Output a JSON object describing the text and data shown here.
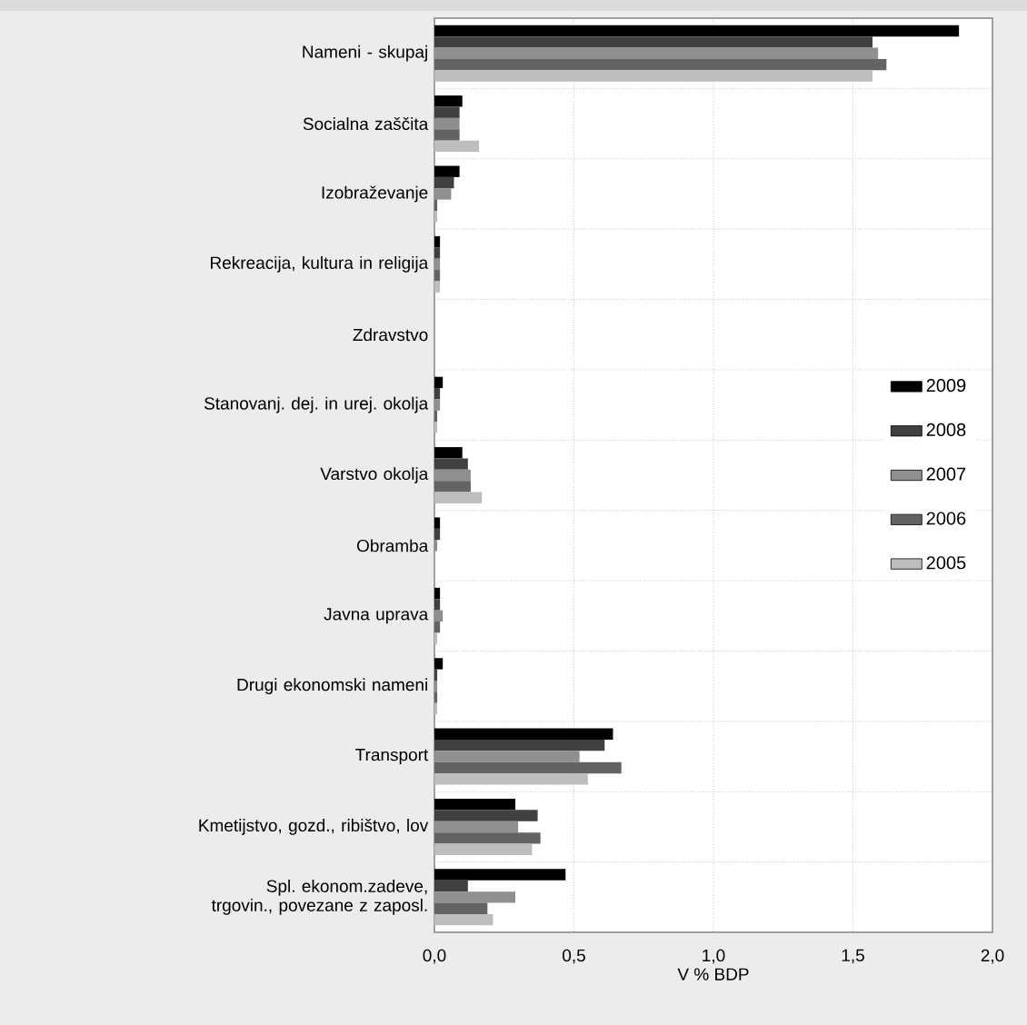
{
  "chart_data": {
    "type": "bar",
    "orientation": "horizontal",
    "xlabel": "V % BDP",
    "categories": [
      "Nameni - skupaj",
      "Socialna zaščita",
      "Izobraževanje",
      "Rekreacija, kultura in religija",
      "Zdravstvo",
      "Stanovanj. dej. in urej. okolja",
      "Varstvo okolja",
      "Obramba",
      "Javna uprava",
      "Drugi ekonomski nameni",
      "Transport",
      "Kmetijstvo, gozd., ribištvo, lov",
      "Spl. ekonom.zadeve, trgovin., povezane z zaposl."
    ],
    "series": [
      {
        "name": "2009",
        "color": "#000000",
        "values": [
          1.88,
          0.1,
          0.09,
          0.02,
          0,
          0.03,
          0.1,
          0.02,
          0.02,
          0.03,
          0.64,
          0.29,
          0.47
        ]
      },
      {
        "name": "2008",
        "color": "#404040",
        "values": [
          1.57,
          0.09,
          0.07,
          0.02,
          0,
          0.02,
          0.12,
          0.02,
          0.02,
          0.01,
          0.61,
          0.37,
          0.12
        ]
      },
      {
        "name": "2007",
        "color": "#8f8f8f",
        "values": [
          1.59,
          0.09,
          0.06,
          0.02,
          0,
          0.02,
          0.13,
          0.01,
          0.03,
          0.01,
          0.52,
          0.3,
          0.29
        ]
      },
      {
        "name": "2006",
        "color": "#636363",
        "values": [
          1.62,
          0.09,
          0.01,
          0.02,
          0,
          0.01,
          0.13,
          0,
          0.02,
          0.01,
          0.67,
          0.38,
          0.19
        ]
      },
      {
        "name": "2005",
        "color": "#bdbdbd",
        "values": [
          1.57,
          0.16,
          0.01,
          0.02,
          0,
          0.01,
          0.17,
          0,
          0.01,
          0.01,
          0.55,
          0.35,
          0.21
        ]
      }
    ],
    "xlim": [
      0,
      2
    ],
    "xticks": [
      {
        "value": 0,
        "label": "0,0"
      },
      {
        "value": 0.5,
        "label": "0,5"
      },
      {
        "value": 1,
        "label": "1,0"
      },
      {
        "value": 1.5,
        "label": "1,5"
      },
      {
        "value": 2,
        "label": "2,0"
      }
    ],
    "grid": true,
    "legend": "right"
  }
}
